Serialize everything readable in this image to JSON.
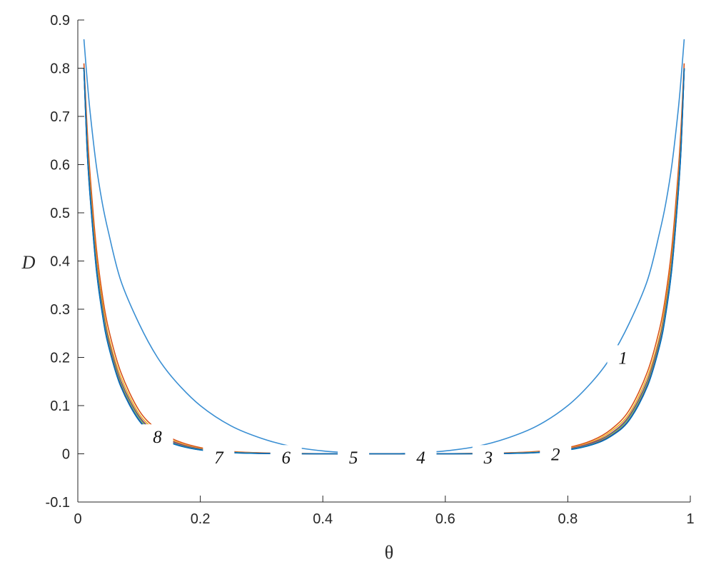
{
  "chart_data": {
    "type": "line",
    "title": "",
    "xlabel": "θ",
    "ylabel": "D",
    "xlim": [
      0,
      1
    ],
    "ylim": [
      -0.1,
      0.9
    ],
    "xticks": [
      "0",
      "0.2",
      "0.4",
      "0.6",
      "0.8",
      "1"
    ],
    "xtick_values": [
      0,
      0.2,
      0.4,
      0.6,
      0.8,
      1
    ],
    "yticks": [
      "-0.1",
      "0",
      "0.1",
      "0.2",
      "0.3",
      "0.4",
      "0.5",
      "0.6",
      "0.7",
      "0.8",
      "0.9"
    ],
    "ytick_values": [
      -0.1,
      0,
      0.1,
      0.2,
      0.3,
      0.4,
      0.5,
      0.6,
      0.7,
      0.8,
      0.9
    ],
    "grid": false,
    "x": [
      0.01,
      0.015,
      0.02,
      0.03,
      0.04,
      0.05,
      0.07,
      0.1,
      0.13,
      0.16,
      0.2,
      0.25,
      0.3,
      0.35,
      0.4,
      0.45,
      0.5,
      0.55,
      0.6,
      0.65,
      0.7,
      0.75,
      0.8,
      0.84,
      0.87,
      0.9,
      0.93,
      0.95,
      0.96,
      0.97,
      0.98,
      0.985,
      0.99
    ],
    "series": [
      {
        "color": "#3A8FD3",
        "values": [
          0.86,
          0.78,
          0.71,
          0.6,
          0.52,
          0.46,
          0.36,
          0.27,
          0.2,
          0.15,
          0.1,
          0.058,
          0.032,
          0.015,
          0.006,
          0.0015,
          0,
          0.0015,
          0.006,
          0.015,
          0.032,
          0.058,
          0.1,
          0.15,
          0.2,
          0.27,
          0.36,
          0.46,
          0.52,
          0.6,
          0.71,
          0.78,
          0.86
        ]
      },
      {
        "color": "#D95319",
        "values": [
          0.81,
          0.68,
          0.58,
          0.43,
          0.33,
          0.26,
          0.17,
          0.09,
          0.05,
          0.028,
          0.013,
          0.005,
          0.002,
          0.0008,
          0.0002,
          0,
          0,
          0,
          0.0002,
          0.0008,
          0.002,
          0.005,
          0.013,
          0.028,
          0.05,
          0.09,
          0.17,
          0.26,
          0.33,
          0.43,
          0.58,
          0.68,
          0.81
        ]
      },
      {
        "color": "#EDB120",
        "values": [
          0.8,
          0.66,
          0.56,
          0.41,
          0.315,
          0.245,
          0.16,
          0.083,
          0.046,
          0.025,
          0.011,
          0.004,
          0.0015,
          0.0006,
          0.0001,
          0,
          0,
          0,
          0.0001,
          0.0006,
          0.0015,
          0.004,
          0.011,
          0.025,
          0.046,
          0.083,
          0.16,
          0.245,
          0.315,
          0.41,
          0.56,
          0.66,
          0.8
        ]
      },
      {
        "color": "#7E2F8E",
        "values": [
          0.8,
          0.65,
          0.55,
          0.4,
          0.305,
          0.237,
          0.152,
          0.078,
          0.042,
          0.023,
          0.01,
          0.0035,
          0.0012,
          0.0004,
          0.0001,
          0,
          0,
          0,
          0.0001,
          0.0004,
          0.0012,
          0.0035,
          0.01,
          0.023,
          0.042,
          0.078,
          0.152,
          0.237,
          0.305,
          0.4,
          0.55,
          0.65,
          0.8
        ]
      },
      {
        "color": "#77AC30",
        "values": [
          0.8,
          0.645,
          0.545,
          0.395,
          0.3,
          0.232,
          0.148,
          0.075,
          0.04,
          0.021,
          0.009,
          0.003,
          0.001,
          0.0003,
          0,
          0,
          0,
          0,
          0,
          0.0003,
          0.001,
          0.003,
          0.009,
          0.021,
          0.04,
          0.075,
          0.148,
          0.232,
          0.3,
          0.395,
          0.545,
          0.645,
          0.8
        ]
      },
      {
        "color": "#4DBEEE",
        "values": [
          0.8,
          0.64,
          0.54,
          0.39,
          0.295,
          0.228,
          0.144,
          0.072,
          0.038,
          0.02,
          0.0085,
          0.0028,
          0.0009,
          0.0003,
          0,
          0,
          0,
          0,
          0,
          0.0003,
          0.0009,
          0.0028,
          0.0085,
          0.02,
          0.038,
          0.072,
          0.144,
          0.228,
          0.295,
          0.39,
          0.54,
          0.64,
          0.8
        ]
      },
      {
        "color": "#A2142F",
        "values": [
          0.8,
          0.637,
          0.537,
          0.387,
          0.292,
          0.226,
          0.142,
          0.07,
          0.037,
          0.0195,
          0.0082,
          0.0026,
          0.0008,
          0.0002,
          0,
          0,
          0,
          0,
          0,
          0.0002,
          0.0008,
          0.0026,
          0.0082,
          0.0195,
          0.037,
          0.07,
          0.142,
          0.226,
          0.292,
          0.387,
          0.537,
          0.637,
          0.8
        ]
      },
      {
        "color": "#0072BD",
        "values": [
          0.8,
          0.635,
          0.535,
          0.385,
          0.29,
          0.224,
          0.14,
          0.069,
          0.036,
          0.019,
          0.008,
          0.0025,
          0.0008,
          0.0002,
          0,
          0,
          0,
          0,
          0,
          0.0002,
          0.0008,
          0.0025,
          0.008,
          0.019,
          0.036,
          0.069,
          0.14,
          0.224,
          0.29,
          0.385,
          0.535,
          0.635,
          0.8
        ]
      }
    ],
    "annotations": [
      {
        "text": "1",
        "x": 0.89,
        "y": 0.2
      },
      {
        "text": "2",
        "x": 0.78,
        "y": 0.0
      },
      {
        "text": "3",
        "x": 0.67,
        "y": -0.007
      },
      {
        "text": "4",
        "x": 0.56,
        "y": -0.007
      },
      {
        "text": "5",
        "x": 0.45,
        "y": -0.007
      },
      {
        "text": "6",
        "x": 0.34,
        "y": -0.007
      },
      {
        "text": "7",
        "x": 0.23,
        "y": -0.007
      },
      {
        "text": "8",
        "x": 0.13,
        "y": 0.036
      }
    ]
  }
}
